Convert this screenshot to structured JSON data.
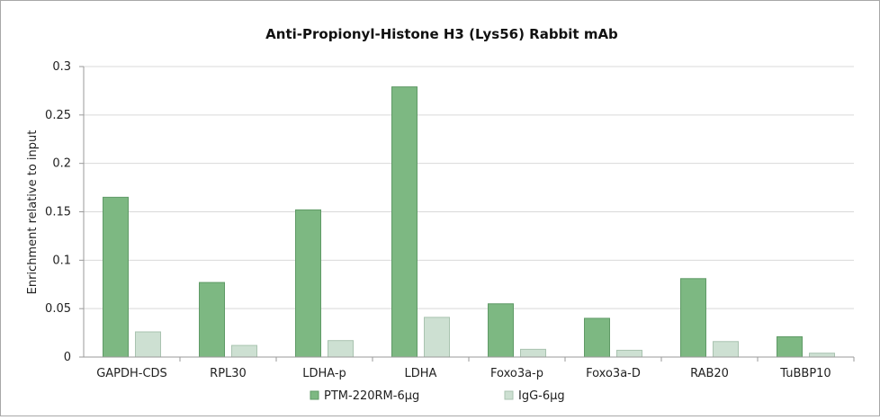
{
  "chart_data": {
    "type": "bar",
    "title": "Anti-Propionyl-Histone H3 (Lys56) Rabbit mAb",
    "xlabel": "",
    "ylabel": "Enrichment relative to input",
    "ylim": [
      0,
      0.3
    ],
    "yticks": [
      "0",
      "0.05",
      "0.1",
      "0.15",
      "0.2",
      "0.25",
      "0.3"
    ],
    "ytick_values": [
      0,
      0.05,
      0.1,
      0.15,
      0.2,
      0.25,
      0.3
    ],
    "grid": true,
    "legend_position": "bottom",
    "categories": [
      "GAPDH-CDS",
      "RPL30",
      "LDHA-p",
      "LDHA",
      "Foxo3a-p",
      "Foxo3a-D",
      "RAB20",
      "TuBBP10"
    ],
    "series": [
      {
        "name": "PTM-220RM-6μg",
        "color": "#7db882",
        "values": [
          0.165,
          0.077,
          0.152,
          0.279,
          0.055,
          0.04,
          0.081,
          0.021
        ]
      },
      {
        "name": "IgG-6μg",
        "color": "#cde0d2",
        "values": [
          0.026,
          0.012,
          0.017,
          0.041,
          0.008,
          0.007,
          0.016,
          0.004
        ]
      }
    ]
  }
}
